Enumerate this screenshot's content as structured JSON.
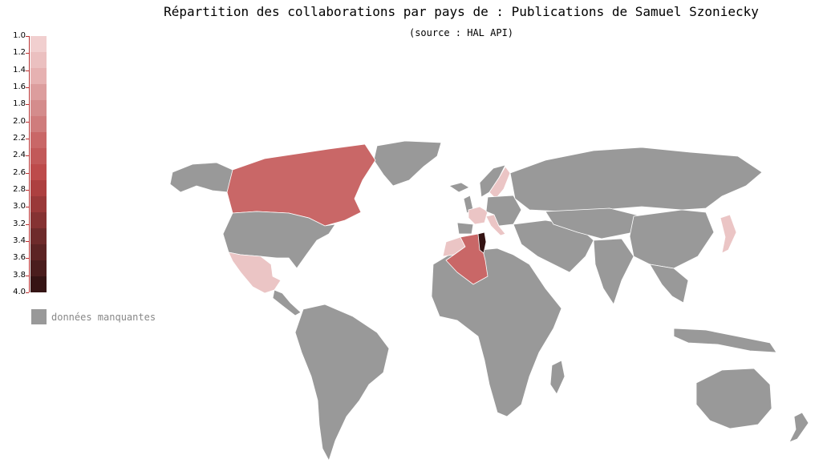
{
  "title": "Répartition des collaborations par pays de : Publications de Samuel Szoniecky",
  "subtitle": "(source : HAL API)",
  "legend": {
    "ticks": [
      "1.0",
      "1.2",
      "1.4",
      "1.6",
      "1.8",
      "2.0",
      "2.2",
      "2.4",
      "2.6",
      "2.8",
      "3.0",
      "3.2",
      "3.4",
      "3.6",
      "3.8",
      "4.0"
    ],
    "scale_colors": [
      "#f1cfcf",
      "#ebc0c0",
      "#e6b1b1",
      "#dc9d9d",
      "#d48c8c",
      "#cf7c7c",
      "#c96767",
      "#c25959",
      "#bd4b4b",
      "#ad4040",
      "#9a3939",
      "#853232",
      "#6e2b2b",
      "#5c2424",
      "#4a1d1d",
      "#351414"
    ],
    "missing_label": "données manquantes",
    "missing_color": "#999999"
  },
  "map": {
    "countries": [
      {
        "name": "Canada",
        "value": 2.0,
        "color": "#c96767"
      },
      {
        "name": "Algeria",
        "value": 2.0,
        "color": "#c96767"
      },
      {
        "name": "Tunisia",
        "value": 4.0,
        "color": "#351414"
      },
      {
        "name": "Mexico",
        "value": 1.0,
        "color": "#ebc5c5"
      },
      {
        "name": "France",
        "value": 1.0,
        "color": "#ebc5c5"
      },
      {
        "name": "Italy",
        "value": 1.0,
        "color": "#ebc5c5"
      },
      {
        "name": "Sweden",
        "value": 1.0,
        "color": "#ebc5c5"
      },
      {
        "name": "Japan",
        "value": 1.0,
        "color": "#ebc5c5"
      },
      {
        "name": "Morocco",
        "value": 1.0,
        "color": "#ebc5c5"
      }
    ],
    "land_color": "#999999",
    "border_color": "#ffffff"
  }
}
